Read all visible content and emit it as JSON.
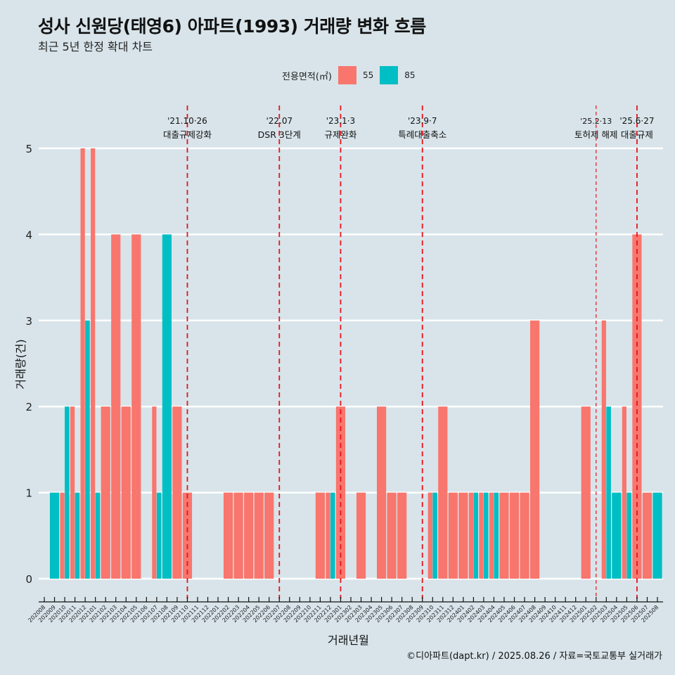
{
  "header": {
    "title": "성사 신원당(태영6) 아파트(1993) 거래량 변화 흐름",
    "subtitle": "최근 5년 한정 확대 차트"
  },
  "legend": {
    "title": "전용면적(㎡)",
    "items": [
      {
        "label": "55",
        "color": "#f8766d"
      },
      {
        "label": "85",
        "color": "#00bfc4"
      }
    ]
  },
  "caption": "©디아파트(dapt.kr) / 2025.08.26 / 자료=국토교통부 실거래가",
  "chart_data": {
    "type": "bar",
    "title": "성사 신원당(태영6) 아파트(1993) 거래량 변화 흐름",
    "subtitle": "최근 5년 한정 확대 차트",
    "xlabel": "거래년월",
    "ylabel": "거래량(건)",
    "ylim": [
      0,
      5
    ],
    "yticks": [
      0,
      1,
      2,
      3,
      4,
      5
    ],
    "grid": true,
    "legend_position": "top",
    "categories": [
      "202008",
      "202009",
      "202010",
      "202011",
      "202012",
      "202101",
      "202102",
      "202103",
      "202104",
      "202105",
      "202106",
      "202107",
      "202108",
      "202109",
      "202110",
      "202111",
      "202112",
      "202201",
      "202202",
      "202203",
      "202204",
      "202205",
      "202206",
      "202207",
      "202208",
      "202209",
      "202210",
      "202211",
      "202212",
      "202301",
      "202302",
      "202303",
      "202304",
      "202305",
      "202306",
      "202307",
      "202308",
      "202309",
      "202310",
      "202311",
      "202312",
      "202401",
      "202402",
      "202403",
      "202404",
      "202405",
      "202406",
      "202407",
      "202408",
      "202409",
      "202410",
      "202411",
      "202412",
      "202501",
      "202502",
      "202503",
      "202504",
      "202505",
      "202506",
      "202507",
      "202508"
    ],
    "series": [
      {
        "name": "55",
        "color": "#f8766d",
        "values": [
          0,
          0,
          1,
          2,
          5,
          5,
          2,
          4,
          2,
          4,
          0,
          2,
          0,
          2,
          1,
          0,
          0,
          0,
          1,
          1,
          1,
          1,
          1,
          0,
          0,
          0,
          0,
          1,
          1,
          2,
          0,
          1,
          0,
          2,
          1,
          1,
          0,
          0,
          1,
          2,
          1,
          1,
          1,
          1,
          1,
          1,
          1,
          1,
          3,
          0,
          0,
          0,
          0,
          2,
          0,
          3,
          0,
          2,
          4,
          1,
          0
        ]
      },
      {
        "name": "85",
        "color": "#00bfc4",
        "values": [
          0,
          1,
          2,
          1,
          3,
          1,
          0,
          0,
          0,
          0,
          0,
          1,
          4,
          0,
          0,
          0,
          0,
          0,
          0,
          0,
          0,
          0,
          0,
          0,
          0,
          0,
          0,
          0,
          1,
          0,
          0,
          0,
          0,
          0,
          0,
          0,
          0,
          0,
          1,
          0,
          0,
          0,
          1,
          1,
          1,
          0,
          0,
          0,
          0,
          0,
          0,
          0,
          0,
          0,
          0,
          2,
          1,
          1,
          0,
          0,
          1
        ]
      }
    ],
    "annotations": [
      {
        "month": "202110",
        "date": "'21.10·26",
        "label": "대출규제강화"
      },
      {
        "month": "202207",
        "date": "'22.07",
        "label": "DSR 3단계"
      },
      {
        "month": "202301",
        "date": "'23.1·3",
        "label": "규제완화"
      },
      {
        "month": "202309",
        "date": "'23.9·7",
        "label": "특례대출축소"
      },
      {
        "month": "202502",
        "date": "'25.2·13",
        "label": "토허제 해제"
      },
      {
        "month": "202506",
        "date": "'25.6·27",
        "label": "대출규제"
      }
    ]
  }
}
